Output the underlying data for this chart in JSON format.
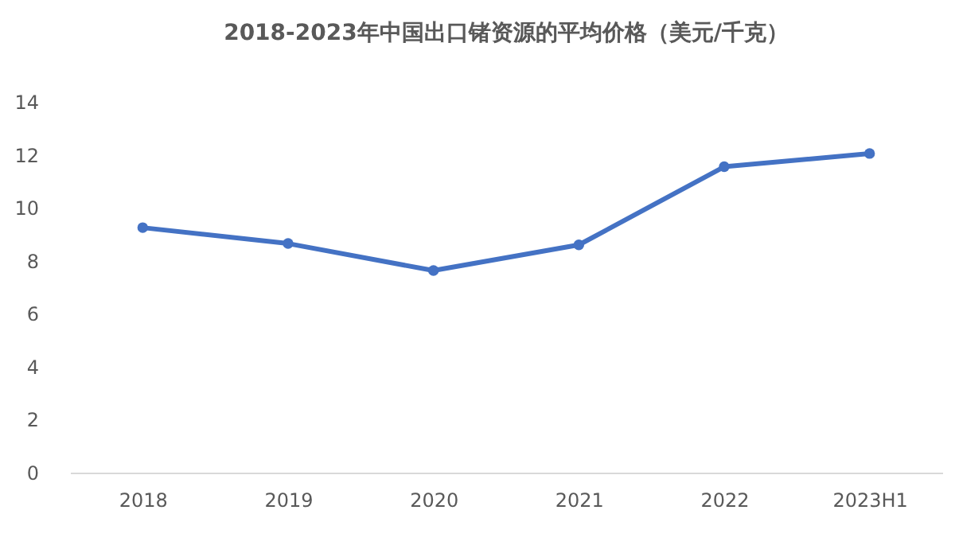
{
  "chart_data": {
    "type": "line",
    "title": "2018-2023年中国出口锗资源的平均价格（美元/千克）",
    "categories": [
      "2018",
      "2019",
      "2020",
      "2021",
      "2022",
      "2023H1"
    ],
    "series": [
      {
        "color": "#4472c4",
        "values": [
          9.25,
          8.65,
          7.63,
          8.6,
          11.55,
          12.05
        ]
      }
    ],
    "ylim": [
      0,
      14
    ],
    "yticks": [
      0,
      2,
      4,
      6,
      8,
      10,
      12,
      14
    ],
    "grid": false,
    "legend": false,
    "marker": "circle",
    "line_style": "solid"
  }
}
